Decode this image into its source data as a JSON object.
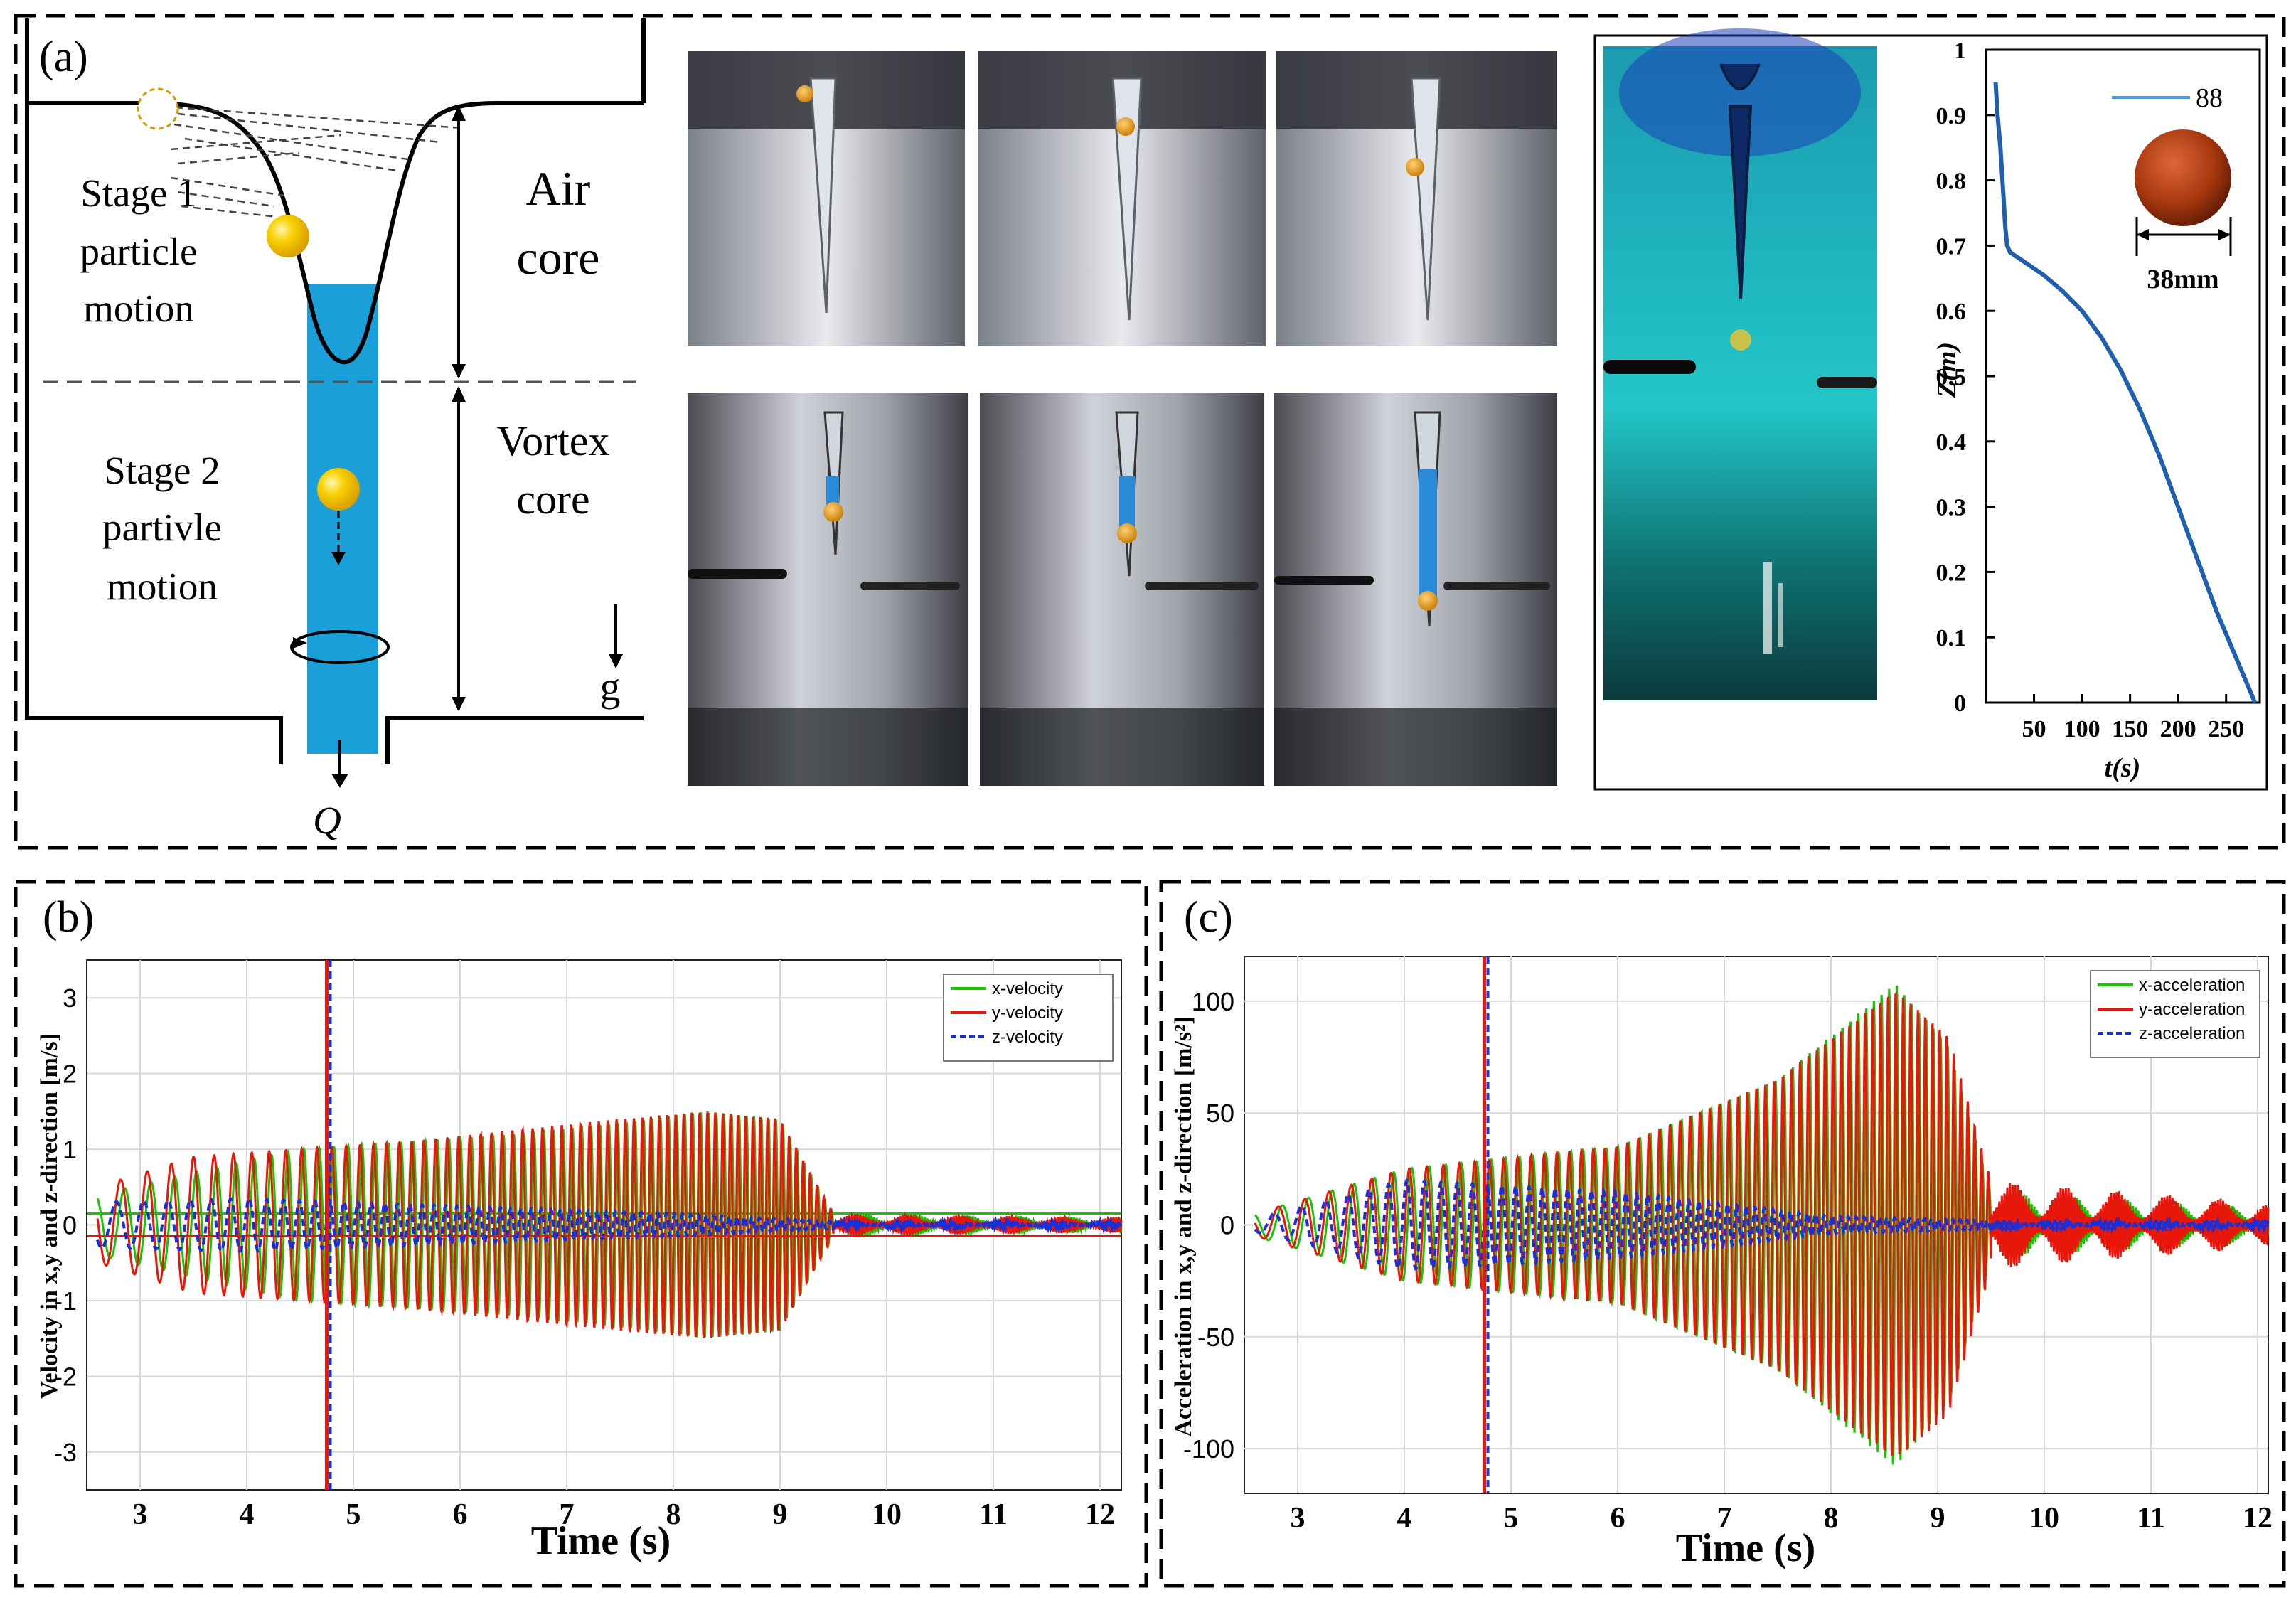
{
  "panel_a": {
    "label": "(a)",
    "diagram": {
      "stage1": [
        "Stage 1",
        "particle",
        "motion"
      ],
      "stage2": [
        "Stage 2",
        "partivle",
        "motion"
      ],
      "air_core": [
        "Air",
        "core"
      ],
      "vortex_core": [
        "Vortex",
        "core"
      ],
      "gravity": "g",
      "outflow": "Q",
      "colors": {
        "water_column": "#1a9fd8",
        "particle": "#f5c400"
      }
    },
    "photos": {
      "top_row_count": 3,
      "bottom_row_count": 3,
      "side_photo": "dyed-vortex-photo"
    },
    "z_plot": {
      "chart_data": {
        "type": "line",
        "xlabel": "t(s)",
        "ylabel": "Z(m)",
        "xlim": [
          0,
          285
        ],
        "ylim": [
          0,
          1
        ],
        "xticks": [
          50,
          100,
          150,
          200,
          250
        ],
        "yticks": [
          0,
          0.1,
          0.2,
          0.3,
          0.4,
          0.5,
          0.6,
          0.7,
          0.8,
          0.9,
          1
        ],
        "ytick_labels": [
          "0",
          "0.1",
          "0.2",
          "0.3",
          "0.4",
          "0.5",
          "0.6",
          "0.7",
          "0.8",
          "0.9",
          "1"
        ],
        "legend": "88",
        "legend_position": "top-right",
        "annotation": "38mm",
        "color": "#1f5fb0",
        "x": [
          10,
          12,
          15,
          18,
          20,
          22,
          25,
          30,
          35,
          40,
          50,
          60,
          80,
          100,
          120,
          140,
          160,
          180,
          200,
          220,
          240,
          260,
          270,
          280
        ],
        "y": [
          0.95,
          0.9,
          0.85,
          0.78,
          0.73,
          0.7,
          0.69,
          0.685,
          0.68,
          0.675,
          0.665,
          0.655,
          0.63,
          0.6,
          0.56,
          0.51,
          0.45,
          0.38,
          0.3,
          0.22,
          0.14,
          0.07,
          0.035,
          0.0
        ]
      }
    }
  },
  "panel_b": {
    "label": "(b)",
    "chart_data": {
      "type": "line",
      "xlabel": "Time (s)",
      "ylabel": "Velocity in x,y and z-direction [m/s]",
      "xlim": [
        2.5,
        12.2
      ],
      "ylim": [
        -3.5,
        3.5
      ],
      "xticks": [
        3,
        4,
        5,
        6,
        7,
        8,
        9,
        10,
        11,
        12
      ],
      "yticks": [
        -3,
        -2,
        -1,
        0,
        1,
        2,
        3
      ],
      "legend_position": "top-right",
      "grid": true,
      "series": [
        {
          "name": "x-velocity",
          "color": "#19c400",
          "style": "solid",
          "envelope_t": [
            2.6,
            3.5,
            4.5,
            5.5,
            6.5,
            7.5,
            8.3,
            9.0,
            9.5,
            12.2
          ],
          "envelope_amp": [
            0.4,
            0.7,
            1.0,
            1.1,
            1.2,
            1.35,
            1.5,
            1.4,
            0.15,
            0.1
          ],
          "baseline": 0.15
        },
        {
          "name": "y-velocity",
          "color": "#e8170c",
          "style": "solid",
          "envelope_t": [
            2.6,
            3.5,
            4.5,
            5.5,
            6.5,
            7.5,
            8.3,
            9.0,
            9.5,
            12.2
          ],
          "envelope_amp": [
            0.5,
            0.9,
            1.0,
            1.1,
            1.25,
            1.4,
            1.5,
            1.4,
            0.15,
            0.1
          ],
          "baseline": -0.15
        },
        {
          "name": "z-velocity",
          "color": "#1a2fd6",
          "style": "dashed",
          "envelope_t": [
            2.6,
            4.0,
            6.0,
            8.0,
            9.5,
            12.2
          ],
          "envelope_amp": [
            0.3,
            0.35,
            0.25,
            0.15,
            0.05,
            0.05
          ],
          "baseline": 0.0
        }
      ]
    }
  },
  "panel_c": {
    "label": "(c)",
    "chart_data": {
      "type": "line",
      "xlabel": "Time (s)",
      "ylabel": "Acceleration in x,y and z-direction [m/s²]",
      "xlim": [
        2.5,
        12.1
      ],
      "ylim": [
        -120,
        120
      ],
      "xticks": [
        3,
        4,
        5,
        6,
        7,
        8,
        9,
        10,
        11,
        12
      ],
      "yticks": [
        -100,
        -50,
        0,
        50,
        100
      ],
      "legend_position": "top-right",
      "grid": true,
      "series": [
        {
          "name": "x-acceleration",
          "color": "#19c400",
          "style": "solid",
          "envelope_t": [
            2.6,
            4.0,
            6.0,
            7.5,
            8.6,
            9.1,
            9.5,
            12.1
          ],
          "envelope_amp": [
            5,
            25,
            35,
            65,
            108,
            80,
            15,
            8
          ]
        },
        {
          "name": "y-acceleration",
          "color": "#e8170c",
          "style": "solid",
          "envelope_t": [
            2.6,
            4.0,
            6.0,
            7.5,
            8.6,
            9.1,
            9.5,
            12.1
          ],
          "envelope_amp": [
            5,
            25,
            35,
            65,
            105,
            85,
            20,
            10
          ]
        },
        {
          "name": "z-acceleration",
          "color": "#1a2fd6",
          "style": "dashed",
          "envelope_t": [
            2.6,
            4.0,
            6.0,
            8.0,
            9.5,
            12.1
          ],
          "envelope_amp": [
            3,
            20,
            15,
            4,
            2,
            2
          ]
        }
      ]
    }
  }
}
